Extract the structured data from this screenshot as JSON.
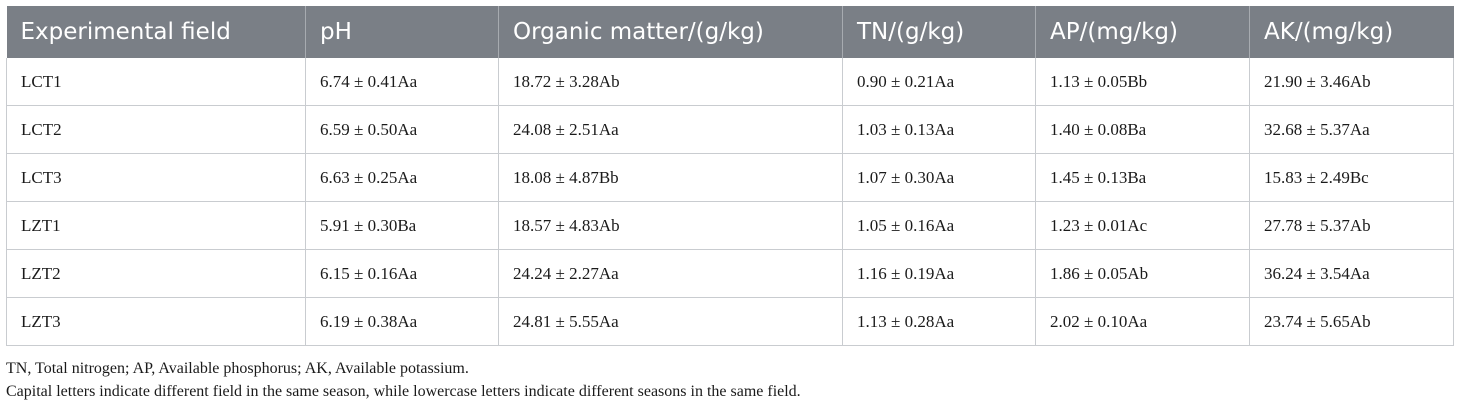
{
  "table": {
    "headers": [
      "Experimental field",
      "pH",
      "Organic matter/(g/kg)",
      "TN/(g/kg)",
      "AP/(mg/kg)",
      "AK/(mg/kg)"
    ],
    "rows": [
      [
        "LCT1",
        "6.74 ± 0.41Aa",
        "18.72 ± 3.28Ab",
        "0.90 ± 0.21Aa",
        "1.13 ± 0.05Bb",
        "21.90 ± 3.46Ab"
      ],
      [
        "LCT2",
        "6.59 ± 0.50Aa",
        "24.08 ± 2.51Aa",
        "1.03 ± 0.13Aa",
        "1.40 ± 0.08Ba",
        "32.68 ± 5.37Aa"
      ],
      [
        "LCT3",
        "6.63 ± 0.25Aa",
        "18.08 ± 4.87Bb",
        "1.07 ± 0.30Aa",
        "1.45 ± 0.13Ba",
        "15.83 ± 2.49Bc"
      ],
      [
        "LZT1",
        "5.91 ± 0.30Ba",
        "18.57 ± 4.83Ab",
        "1.05 ± 0.16Aa",
        "1.23 ± 0.01Ac",
        "27.78 ± 5.37Ab"
      ],
      [
        "LZT2",
        "6.15 ± 0.16Aa",
        "24.24 ± 2.27Aa",
        "1.16 ± 0.19Aa",
        "1.86 ± 0.05Ab",
        "36.24 ± 3.54Aa"
      ],
      [
        "LZT3",
        "6.19 ± 0.38Aa",
        "24.81 ± 5.55Aa",
        "1.13 ± 0.28Aa",
        "2.02 ± 0.10Aa",
        "23.74 ± 5.65Ab"
      ]
    ]
  },
  "footnotes": [
    "TN, Total nitrogen; AP, Available phosphorus; AK, Available potassium.",
    "Capital letters indicate different field in the same season, while lowercase letters indicate different seasons in the same field."
  ],
  "colors": {
    "header_background": "#7a7f86",
    "header_text": "#ffffff",
    "grid_line": "#c9ccd0"
  }
}
